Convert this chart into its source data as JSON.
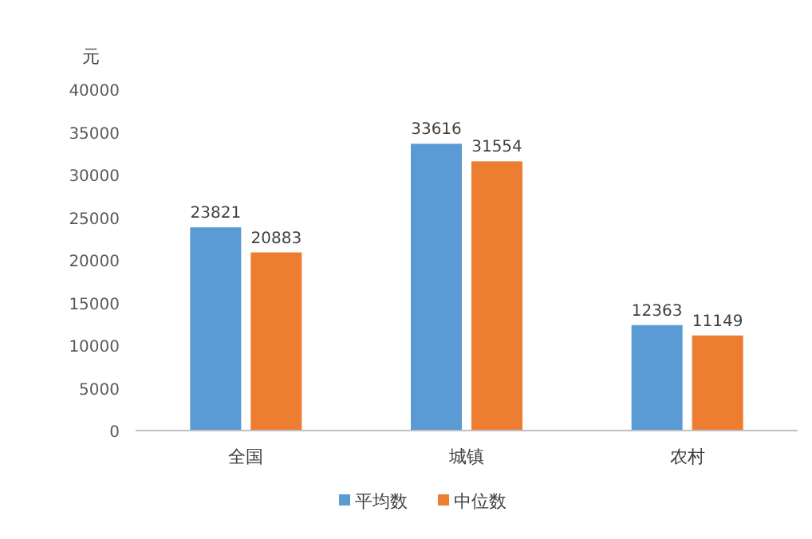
{
  "chart_data": {
    "type": "bar",
    "ylabel": "元",
    "categories": [
      "全国",
      "城镇",
      "农村"
    ],
    "series": [
      {
        "name": "平均数",
        "color": "#5b9bd5",
        "values": [
          23821,
          33616,
          12363
        ]
      },
      {
        "name": "中位数",
        "color": "#ed7d31",
        "values": [
          20883,
          31554,
          11149
        ]
      }
    ],
    "ylim": [
      0,
      40000
    ],
    "yticks": [
      0,
      5000,
      10000,
      15000,
      20000,
      25000,
      30000,
      35000,
      40000
    ],
    "data_labels": true,
    "legend": "bottom",
    "grid": false
  }
}
